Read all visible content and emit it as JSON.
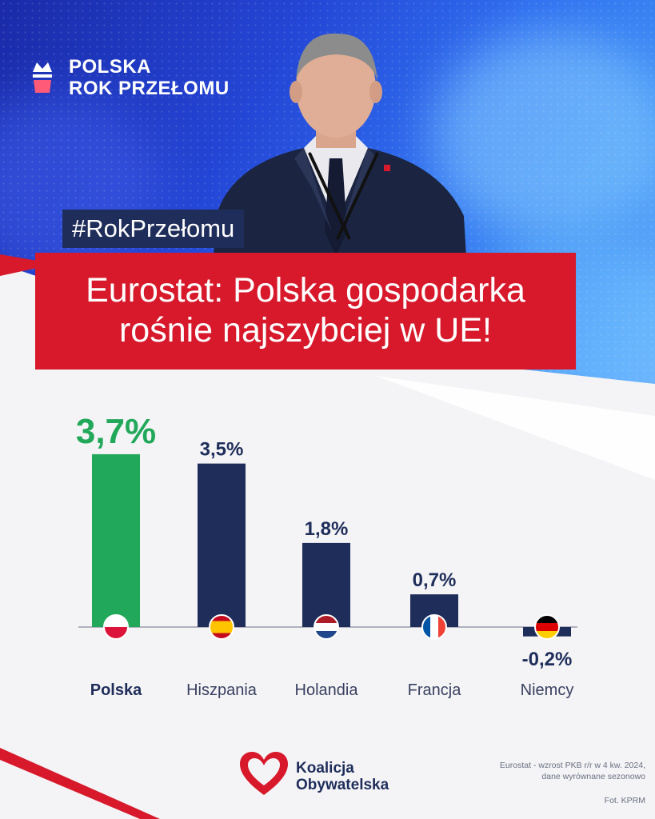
{
  "branding": {
    "line1": "POLSKA",
    "line2": "ROK PRZEŁOMU"
  },
  "hashtag": "#RokPrzełomu",
  "headline": {
    "line1": "Eurostat: Polska gospodarka",
    "line2": "rośnie najszybciej w UE!"
  },
  "chart_data": {
    "type": "bar",
    "categories": [
      "Polska",
      "Hiszpania",
      "Holandia",
      "Francja",
      "Niemcy"
    ],
    "values": [
      3.7,
      3.5,
      1.8,
      0.7,
      -0.2
    ],
    "value_labels": [
      "3,7%",
      "3,5%",
      "1,8%",
      "0,7%",
      "-0,2%"
    ],
    "flags": [
      "poland-flag-icon",
      "spain-flag-icon",
      "netherlands-flag-icon",
      "france-flag-icon",
      "germany-flag-icon"
    ],
    "highlight_index": 0,
    "colors": {
      "highlight": "#22a85a",
      "bar": "#1f2d5a",
      "axis": "#9a9ca8"
    },
    "ylim": [
      -0.2,
      3.7
    ],
    "title": "",
    "xlabel": "",
    "ylabel": ""
  },
  "footer": {
    "logo_line1": "Koalicja",
    "logo_line2": "Obywatelska",
    "source_line1": "Eurostat - wzrost PKB r/r w 4 kw. 2024,",
    "source_line2": "dane wyrównane sezonowo",
    "photo_credit": "Fot. KPRM"
  },
  "colors": {
    "accent_red": "#d7192b",
    "navy": "#1f2d5a",
    "green": "#22a85a"
  }
}
